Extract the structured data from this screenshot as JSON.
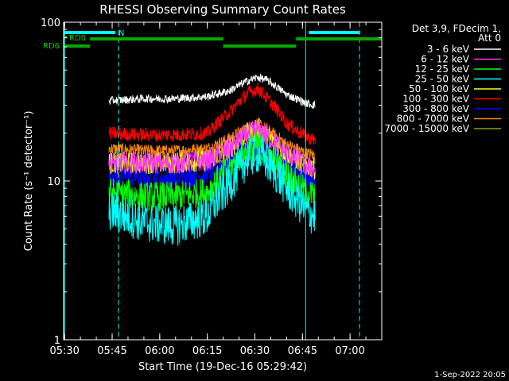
{
  "chart_data": {
    "type": "line",
    "title": "RHESSI Observing Summary Count Rates",
    "xlabel": "Start Time (19-Dec-16 05:29:42)",
    "ylabel": "Count Rate (s⁻¹ detector⁻¹)",
    "y_scale": "log",
    "ylim": [
      1,
      100
    ],
    "xlim": [
      "05:30",
      "07:10"
    ],
    "x_ticks": [
      "05:30",
      "05:45",
      "06:00",
      "06:15",
      "06:30",
      "06:45",
      "07:00"
    ],
    "y_ticks": [
      "1",
      "10",
      "100"
    ],
    "legend_header": [
      "Det 3,9, FDecim 1,",
      "Att 0"
    ],
    "legend_placement": "right",
    "footer_date": "1-Sep-2022 20:05",
    "data_start": "05:44",
    "data_end": "06:49",
    "series": [
      {
        "name": "3 - 6 keV",
        "color": "#ffffff",
        "x": [
          "05:44",
          "05:55",
          "06:05",
          "06:15",
          "06:22",
          "06:28",
          "06:31",
          "06:34",
          "06:40",
          "06:46",
          "06:49"
        ],
        "y": [
          32,
          33,
          33,
          34,
          37,
          43,
          45,
          43,
          35,
          31,
          30
        ]
      },
      {
        "name": "6 - 12 keV",
        "color": "#ff33ff",
        "x": [
          "05:44",
          "05:55",
          "06:05",
          "06:15",
          "06:22",
          "06:28",
          "06:31",
          "06:34",
          "06:40",
          "06:46",
          "06:49"
        ],
        "y": [
          13,
          13,
          13,
          13.5,
          16,
          20,
          21,
          19,
          15,
          12.5,
          12
        ]
      },
      {
        "name": "12 - 25 keV",
        "color": "#00ff00",
        "x": [
          "05:44",
          "05:55",
          "06:05",
          "06:15",
          "06:22",
          "06:28",
          "06:31",
          "06:34",
          "06:40",
          "06:46",
          "06:49"
        ],
        "y": [
          8.5,
          8,
          8,
          8.5,
          12,
          16,
          17,
          15,
          11,
          8.5,
          8
        ]
      },
      {
        "name": "25 - 50 keV",
        "color": "#00ffff",
        "x": [
          "05:44",
          "05:55",
          "06:05",
          "06:15",
          "06:22",
          "06:28",
          "06:31",
          "06:34",
          "06:40",
          "06:46",
          "06:49"
        ],
        "y": [
          6.5,
          5.5,
          5.2,
          6,
          9.5,
          14,
          15,
          13,
          9,
          6.5,
          6
        ]
      },
      {
        "name": "50 - 100 keV",
        "color": "#ffff00",
        "x": [
          "05:44",
          "05:55",
          "06:05",
          "06:15",
          "06:22",
          "06:28",
          "06:31",
          "06:34",
          "06:40",
          "06:46",
          "06:49"
        ],
        "y": [
          13,
          13,
          13,
          13.5,
          16,
          20,
          21,
          19,
          15,
          12.5,
          12
        ]
      },
      {
        "name": "100 - 300 keV",
        "color": "#ff0000",
        "x": [
          "05:44",
          "05:55",
          "06:05",
          "06:15",
          "06:22",
          "06:28",
          "06:31",
          "06:34",
          "06:40",
          "06:46",
          "06:49"
        ],
        "y": [
          20,
          19.5,
          19.5,
          20,
          27,
          36,
          38,
          33,
          23,
          19,
          18
        ]
      },
      {
        "name": "300 - 800 keV",
        "color": "#0000ff",
        "x": [
          "05:44",
          "05:55",
          "06:05",
          "06:15",
          "06:22",
          "06:28",
          "06:31",
          "06:34",
          "06:40",
          "06:46",
          "06:49"
        ],
        "y": [
          11,
          10.5,
          10.5,
          11,
          13.5,
          17,
          18,
          16,
          12.5,
          10.5,
          10
        ]
      },
      {
        "name": "800 - 7000 keV",
        "color": "#ff8800",
        "x": [
          "05:44",
          "05:55",
          "06:05",
          "06:15",
          "06:22",
          "06:28",
          "06:31",
          "06:34",
          "06:40",
          "06:46",
          "06:49"
        ],
        "y": [
          16,
          15.5,
          15.5,
          16,
          18.5,
          22,
          23,
          21,
          17,
          15,
          14.5
        ]
      },
      {
        "name": "7000 - 15000 keV",
        "color": "#999900",
        "x": [
          "05:44",
          "05:55",
          "06:05",
          "06:15",
          "06:22",
          "06:28",
          "06:31",
          "06:34",
          "06:40",
          "06:46",
          "06:49"
        ],
        "y": [
          13,
          13,
          13,
          13,
          13.5,
          14,
          14,
          14,
          13.5,
          13,
          13
        ]
      }
    ],
    "status_bars": [
      {
        "label": "N",
        "color": "#00ffff",
        "segments": [
          [
            "05:30",
            "05:46"
          ],
          [
            "06:47",
            "07:03"
          ]
        ]
      },
      {
        "label": "RD0",
        "color": "#00aa00",
        "segments": [
          [
            "05:30",
            "05:30"
          ]
        ]
      },
      {
        "label": "",
        "color": "#00aa00",
        "segments": [
          [
            "05:38",
            "06:20"
          ],
          [
            "06:43",
            "07:10"
          ]
        ]
      },
      {
        "label": "RD6",
        "color": "#00aa00",
        "segments": [
          [
            "05:30",
            "05:38"
          ],
          [
            "06:20",
            "06:43"
          ]
        ]
      }
    ],
    "vertical_markers": [
      {
        "time": "05:29:42",
        "style": "solid",
        "color": "#00ffff"
      },
      {
        "time": "05:47",
        "style": "dashed",
        "color": "#00ffff"
      },
      {
        "time": "06:46",
        "style": "solid",
        "color": "#00ffff"
      },
      {
        "time": "07:03",
        "style": "dashed",
        "color": "#00ffff"
      }
    ]
  }
}
